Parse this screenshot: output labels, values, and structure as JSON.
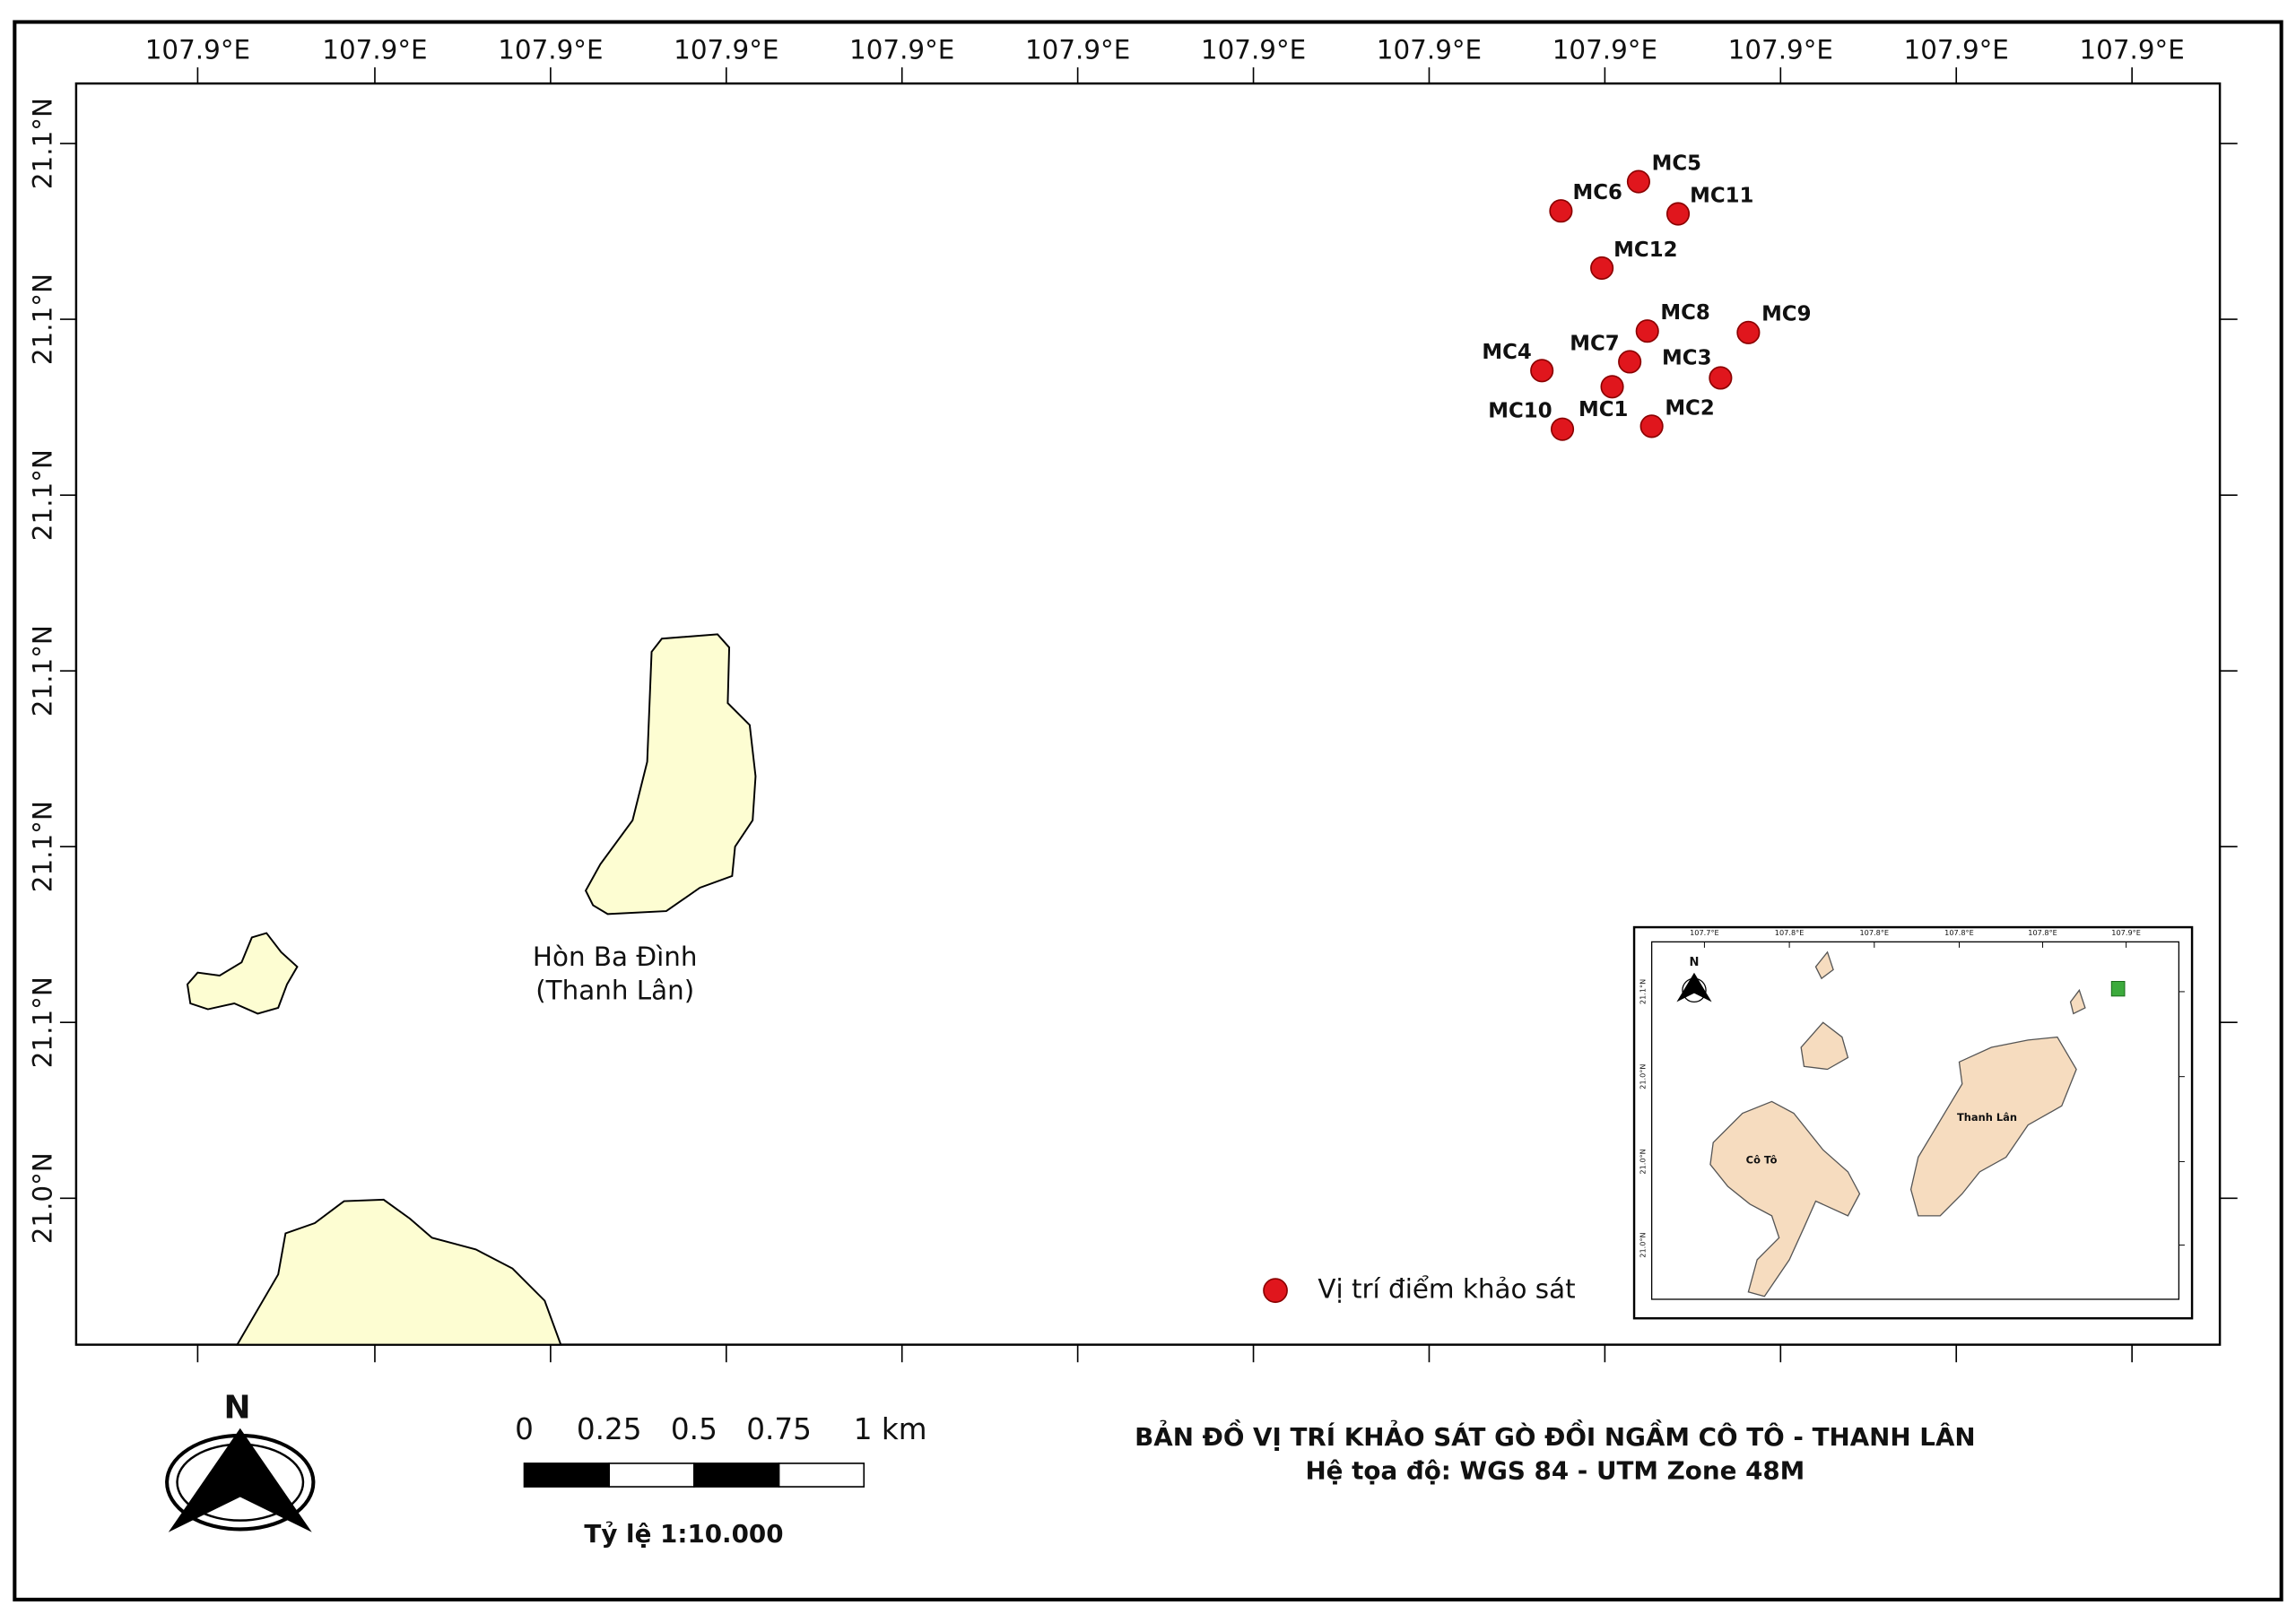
{
  "map": {
    "title": "BẢN ĐỒ VỊ TRÍ KHẢO SÁT GÒ ĐỒI NGẦM CÔ TÔ - THANH LÂN",
    "subtitle": "Hệ tọa độ: WGS 84 - UTM Zone 48M",
    "lon_labels": [
      "107.9°E",
      "107.9°E",
      "107.9°E",
      "107.9°E",
      "107.9°E",
      "107.9°E",
      "107.9°E",
      "107.9°E",
      "107.9°E",
      "107.9°E",
      "107.9°E",
      "107.9°E"
    ],
    "lat_labels": [
      "21.1°N",
      "21.1°N",
      "21.1°N",
      "21.1°N",
      "21.1°N",
      "21.1°N",
      "21.0°N"
    ],
    "points": [
      "MC1",
      "MC2",
      "MC3",
      "MC4",
      "MC5",
      "MC6",
      "MC7",
      "MC8",
      "MC9",
      "MC10",
      "MC11",
      "MC12"
    ],
    "island_label": [
      "Hòn Ba Đình",
      "(Thanh Lân)"
    ],
    "legend": "Vị trí điểm khảo sát",
    "north": "N",
    "scale_labels": [
      "0",
      "0.25",
      "0.5",
      "0.75",
      "1 km"
    ],
    "scale_text": "Tỷ lệ 1:10.000",
    "inset": {
      "lon_labels": [
        "107.7°E",
        "107.8°E",
        "107.8°E",
        "107.8°E",
        "107.8°E",
        "107.9°E"
      ],
      "lat_labels": [
        "21.1°N",
        "21.0°N",
        "21.0°N",
        "21.0°N"
      ],
      "places": [
        "Cô Tô",
        "Thanh Lân"
      ],
      "north": "N"
    }
  }
}
